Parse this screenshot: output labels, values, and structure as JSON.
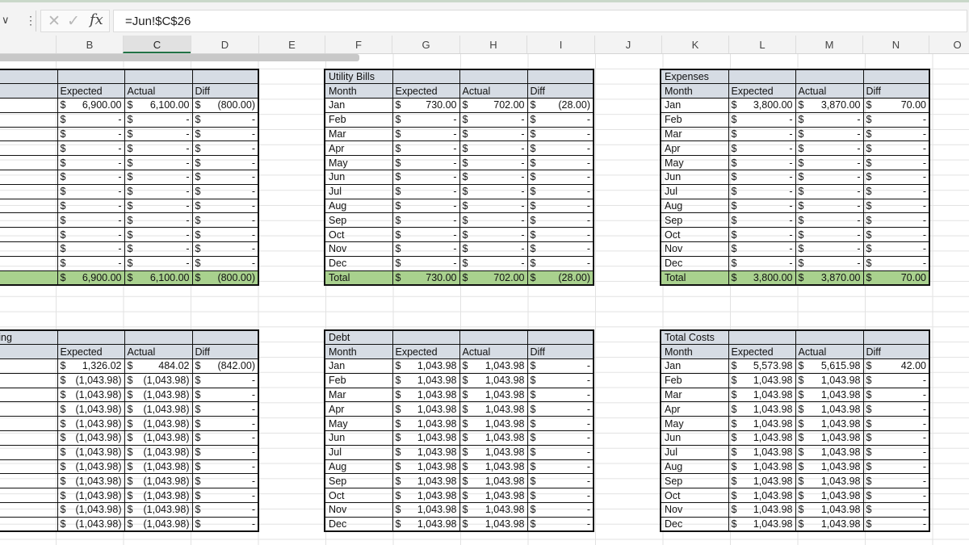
{
  "formula_bar": {
    "name_box_arrow": "∨",
    "dots": "⋮",
    "cancel_icon": "✕",
    "enter_icon": "✓",
    "fx_label": "fx",
    "formula": "=Jun!$C$26"
  },
  "columns": [
    "B",
    "C",
    "D",
    "E",
    "F",
    "G",
    "H",
    "I",
    "J",
    "K",
    "L",
    "M",
    "N",
    "O"
  ],
  "selected_column": "C",
  "tables": {
    "t1": {
      "title": "",
      "headers": [
        "",
        "Expected",
        "Actual",
        "Diff"
      ],
      "rows": [
        [
          "",
          "6,900.00",
          "6,100.00",
          "(800.00)"
        ],
        [
          "",
          "-",
          "-",
          "-"
        ],
        [
          "",
          "-",
          "-",
          "-"
        ],
        [
          "",
          "-",
          "-",
          "-"
        ],
        [
          "",
          "-",
          "-",
          "-"
        ],
        [
          "",
          "-",
          "-",
          "-"
        ],
        [
          "",
          "-",
          "-",
          "-"
        ],
        [
          "",
          "-",
          "-",
          "-"
        ],
        [
          "",
          "-",
          "-",
          "-"
        ],
        [
          "",
          "-",
          "-",
          "-"
        ],
        [
          "",
          "-",
          "-",
          "-"
        ],
        [
          "",
          "-",
          "-",
          "-"
        ]
      ],
      "total": [
        "",
        "6,900.00",
        "6,100.00",
        "(800.00)"
      ]
    },
    "t2": {
      "title": "Utility Bills",
      "headers": [
        "Month",
        "Expected",
        "Actual",
        "Diff"
      ],
      "rows": [
        [
          "Jan",
          "730.00",
          "702.00",
          "(28.00)"
        ],
        [
          "Feb",
          "-",
          "-",
          "-"
        ],
        [
          "Mar",
          "-",
          "-",
          "-"
        ],
        [
          "Apr",
          "-",
          "-",
          "-"
        ],
        [
          "May",
          "-",
          "-",
          "-"
        ],
        [
          "Jun",
          "-",
          "-",
          "-"
        ],
        [
          "Jul",
          "-",
          "-",
          "-"
        ],
        [
          "Aug",
          "-",
          "-",
          "-"
        ],
        [
          "Sep",
          "-",
          "-",
          "-"
        ],
        [
          "Oct",
          "-",
          "-",
          "-"
        ],
        [
          "Nov",
          "-",
          "-",
          "-"
        ],
        [
          "Dec",
          "-",
          "-",
          "-"
        ]
      ],
      "total": [
        "Total",
        "730.00",
        "702.00",
        "(28.00)"
      ]
    },
    "t3": {
      "title": "Expenses",
      "headers": [
        "Month",
        "Expected",
        "Actual",
        "Diff"
      ],
      "rows": [
        [
          "Jan",
          "3,800.00",
          "3,870.00",
          "70.00"
        ],
        [
          "Feb",
          "-",
          "-",
          "-"
        ],
        [
          "Mar",
          "-",
          "-",
          "-"
        ],
        [
          "Apr",
          "-",
          "-",
          "-"
        ],
        [
          "May",
          "-",
          "-",
          "-"
        ],
        [
          "Jun",
          "-",
          "-",
          "-"
        ],
        [
          "Jul",
          "-",
          "-",
          "-"
        ],
        [
          "Aug",
          "-",
          "-",
          "-"
        ],
        [
          "Sep",
          "-",
          "-",
          "-"
        ],
        [
          "Oct",
          "-",
          "-",
          "-"
        ],
        [
          "Nov",
          "-",
          "-",
          "-"
        ],
        [
          "Dec",
          "-",
          "-",
          "-"
        ]
      ],
      "total": [
        "Total",
        "3,800.00",
        "3,870.00",
        "70.00"
      ]
    },
    "t4": {
      "title": "ving",
      "headers": [
        "",
        "Expected",
        "Actual",
        "Diff"
      ],
      "rows": [
        [
          "",
          "1,326.02",
          "484.02",
          "(842.00)"
        ],
        [
          "",
          "(1,043.98)",
          "(1,043.98)",
          "-"
        ],
        [
          "",
          "(1,043.98)",
          "(1,043.98)",
          "-"
        ],
        [
          "",
          "(1,043.98)",
          "(1,043.98)",
          "-"
        ],
        [
          "",
          "(1,043.98)",
          "(1,043.98)",
          "-"
        ],
        [
          "",
          "(1,043.98)",
          "(1,043.98)",
          "-"
        ],
        [
          "",
          "(1,043.98)",
          "(1,043.98)",
          "-"
        ],
        [
          "",
          "(1,043.98)",
          "(1,043.98)",
          "-"
        ],
        [
          "",
          "(1,043.98)",
          "(1,043.98)",
          "-"
        ],
        [
          "",
          "(1,043.98)",
          "(1,043.98)",
          "-"
        ],
        [
          "",
          "(1,043.98)",
          "(1,043.98)",
          "-"
        ],
        [
          "",
          "(1,043.98)",
          "(1,043.98)",
          "-"
        ]
      ]
    },
    "t5": {
      "title": "Debt",
      "headers": [
        "Month",
        "Expected",
        "Actual",
        "Diff"
      ],
      "rows": [
        [
          "Jan",
          "1,043.98",
          "1,043.98",
          "-"
        ],
        [
          "Feb",
          "1,043.98",
          "1,043.98",
          "-"
        ],
        [
          "Mar",
          "1,043.98",
          "1,043.98",
          "-"
        ],
        [
          "Apr",
          "1,043.98",
          "1,043.98",
          "-"
        ],
        [
          "May",
          "1,043.98",
          "1,043.98",
          "-"
        ],
        [
          "Jun",
          "1,043.98",
          "1,043.98",
          "-"
        ],
        [
          "Jul",
          "1,043.98",
          "1,043.98",
          "-"
        ],
        [
          "Aug",
          "1,043.98",
          "1,043.98",
          "-"
        ],
        [
          "Sep",
          "1,043.98",
          "1,043.98",
          "-"
        ],
        [
          "Oct",
          "1,043.98",
          "1,043.98",
          "-"
        ],
        [
          "Nov",
          "1,043.98",
          "1,043.98",
          "-"
        ],
        [
          "Dec",
          "1,043.98",
          "1,043.98",
          "-"
        ]
      ]
    },
    "t6": {
      "title": "Total Costs",
      "headers": [
        "Month",
        "Expected",
        "Actual",
        "Diff"
      ],
      "rows": [
        [
          "Jan",
          "5,573.98",
          "5,615.98",
          "42.00"
        ],
        [
          "Feb",
          "1,043.98",
          "1,043.98",
          "-"
        ],
        [
          "Mar",
          "1,043.98",
          "1,043.98",
          "-"
        ],
        [
          "Apr",
          "1,043.98",
          "1,043.98",
          "-"
        ],
        [
          "May",
          "1,043.98",
          "1,043.98",
          "-"
        ],
        [
          "Jun",
          "1,043.98",
          "1,043.98",
          "-"
        ],
        [
          "Jul",
          "1,043.98",
          "1,043.98",
          "-"
        ],
        [
          "Aug",
          "1,043.98",
          "1,043.98",
          "-"
        ],
        [
          "Sep",
          "1,043.98",
          "1,043.98",
          "-"
        ],
        [
          "Oct",
          "1,043.98",
          "1,043.98",
          "-"
        ],
        [
          "Nov",
          "1,043.98",
          "1,043.98",
          "-"
        ],
        [
          "Dec",
          "1,043.98",
          "1,043.98",
          "-"
        ]
      ]
    }
  },
  "currency_symbol": "$",
  "colors": {
    "header_fill": "#d6dce4",
    "total_fill": "#a9d18e",
    "selection_accent": "#217346"
  }
}
